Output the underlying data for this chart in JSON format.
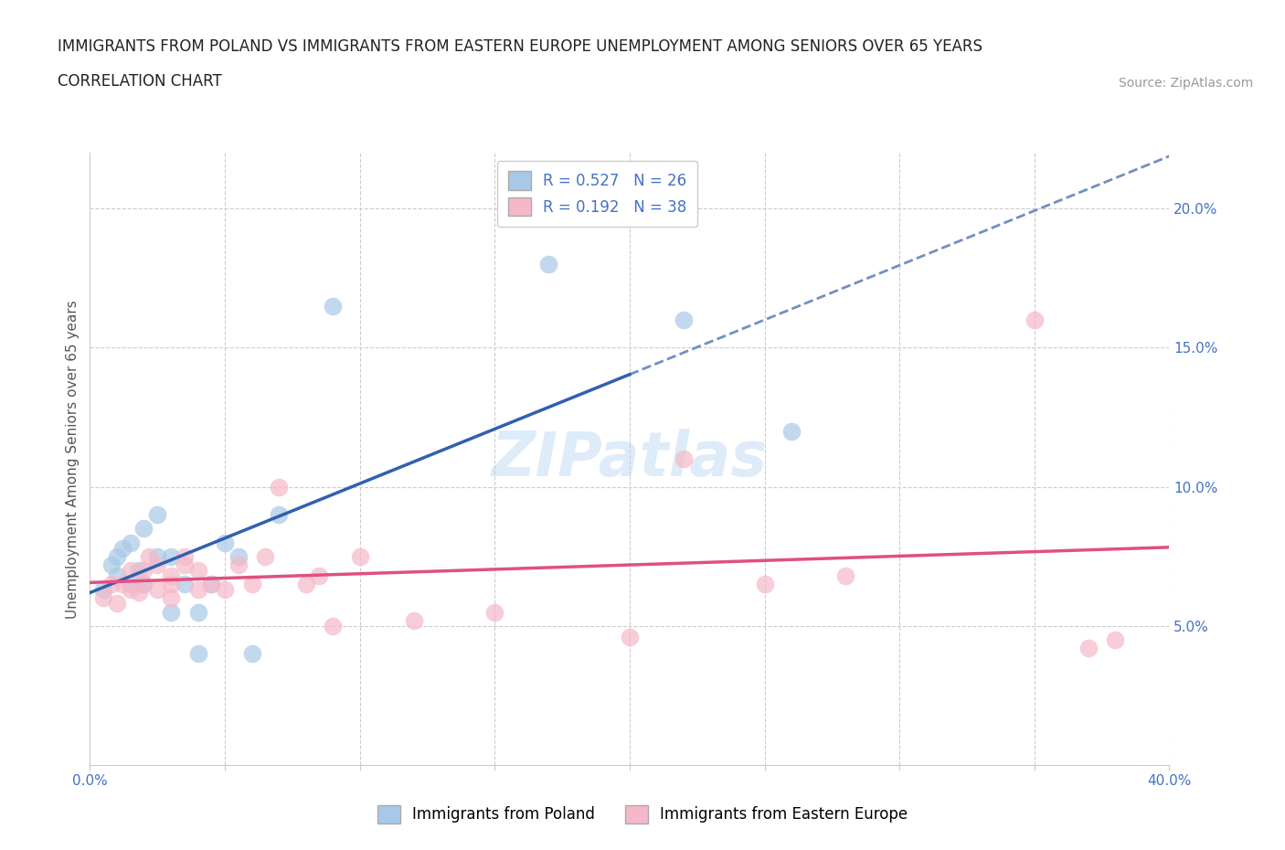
{
  "title_line1": "IMMIGRANTS FROM POLAND VS IMMIGRANTS FROM EASTERN EUROPE UNEMPLOYMENT AMONG SENIORS OVER 65 YEARS",
  "title_line2": "CORRELATION CHART",
  "source_text": "Source: ZipAtlas.com",
  "ylabel": "Unemployment Among Seniors over 65 years",
  "xlim": [
    0.0,
    0.4
  ],
  "ylim": [
    0.0,
    0.22
  ],
  "xticks": [
    0.0,
    0.05,
    0.1,
    0.15,
    0.2,
    0.25,
    0.3,
    0.35,
    0.4
  ],
  "yticks": [
    0.05,
    0.1,
    0.15,
    0.2
  ],
  "xtick_labels": [
    "0.0%",
    "",
    "",
    "",
    "",
    "",
    "",
    "",
    "40.0%"
  ],
  "ytick_labels": [
    "5.0%",
    "10.0%",
    "15.0%",
    "20.0%"
  ],
  "legend_r1": "R = 0.527",
  "legend_n1": "N = 26",
  "legend_r2": "R = 0.192",
  "legend_n2": "N = 38",
  "color_poland": "#a8c8e8",
  "color_eastern": "#f4b8c8",
  "trendline_poland_color": "#3060b0",
  "trendline_eastern_color": "#e05080",
  "trendline_dashed_color": "#7090c0",
  "watermark": "ZIPatlas",
  "poland_x": [
    0.005,
    0.008,
    0.01,
    0.01,
    0.012,
    0.015,
    0.015,
    0.018,
    0.02,
    0.02,
    0.025,
    0.025,
    0.03,
    0.03,
    0.035,
    0.04,
    0.04,
    0.045,
    0.05,
    0.055,
    0.06,
    0.07,
    0.09,
    0.17,
    0.22,
    0.26
  ],
  "poland_y": [
    0.063,
    0.072,
    0.068,
    0.075,
    0.078,
    0.065,
    0.08,
    0.07,
    0.065,
    0.085,
    0.09,
    0.075,
    0.055,
    0.075,
    0.065,
    0.04,
    0.055,
    0.065,
    0.08,
    0.075,
    0.04,
    0.09,
    0.165,
    0.18,
    0.16,
    0.12
  ],
  "poland_x_trend_end": 0.2,
  "eastern_x": [
    0.005,
    0.008,
    0.01,
    0.012,
    0.015,
    0.015,
    0.018,
    0.02,
    0.02,
    0.022,
    0.025,
    0.025,
    0.03,
    0.03,
    0.03,
    0.035,
    0.035,
    0.04,
    0.04,
    0.045,
    0.05,
    0.055,
    0.06,
    0.065,
    0.07,
    0.08,
    0.085,
    0.09,
    0.1,
    0.12,
    0.15,
    0.2,
    0.22,
    0.25,
    0.28,
    0.35,
    0.37,
    0.38
  ],
  "eastern_y": [
    0.06,
    0.065,
    0.058,
    0.065,
    0.063,
    0.07,
    0.062,
    0.065,
    0.07,
    0.075,
    0.063,
    0.072,
    0.06,
    0.065,
    0.068,
    0.072,
    0.075,
    0.063,
    0.07,
    0.065,
    0.063,
    0.072,
    0.065,
    0.075,
    0.1,
    0.065,
    0.068,
    0.05,
    0.075,
    0.052,
    0.055,
    0.046,
    0.11,
    0.065,
    0.068,
    0.16,
    0.042,
    0.045
  ],
  "background_color": "#ffffff",
  "title_fontsize": 12,
  "axis_label_fontsize": 11,
  "tick_fontsize": 11,
  "legend_fontsize": 12,
  "source_fontsize": 10
}
